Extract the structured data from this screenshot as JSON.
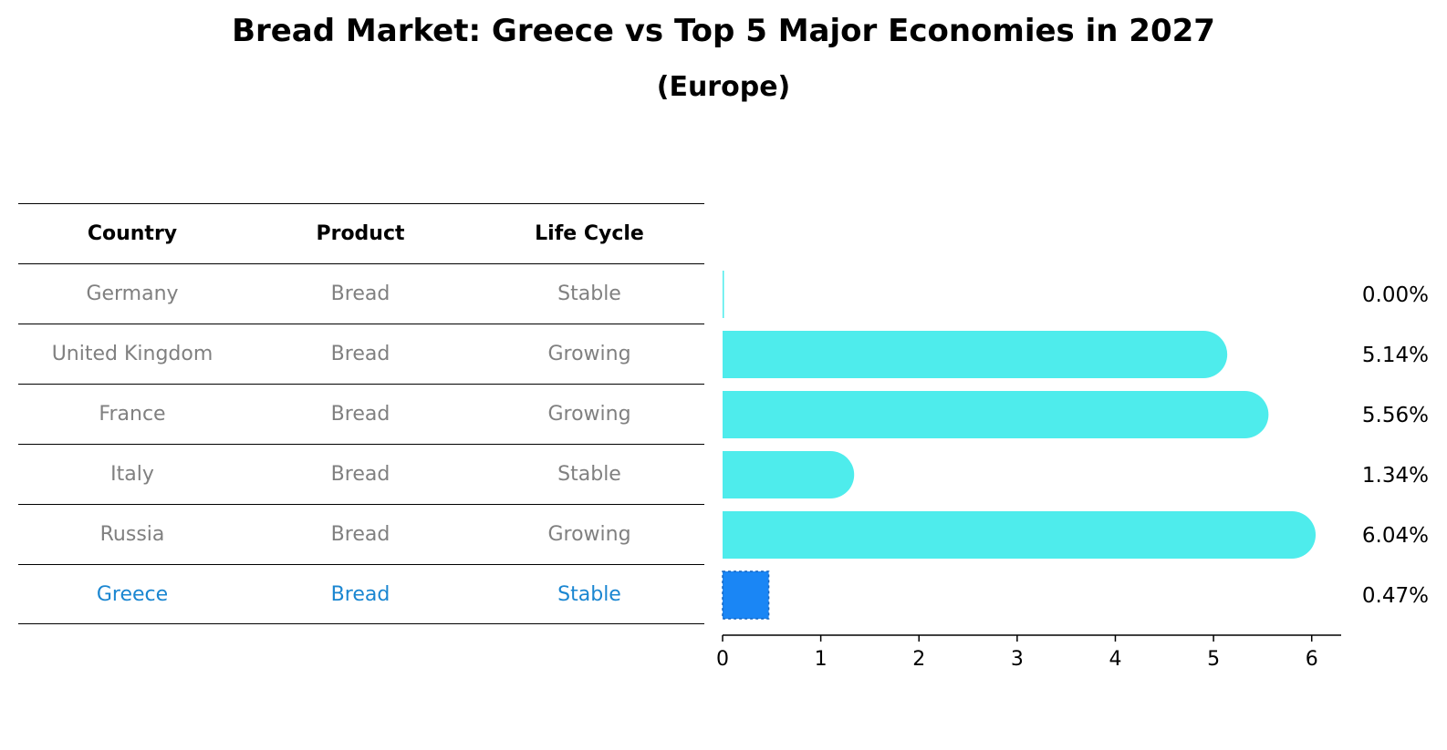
{
  "title": "Bread Market: Greece vs Top 5 Major Economies in 2027",
  "subtitle": "(Europe)",
  "table": {
    "headers": [
      "Country",
      "Product",
      "Life Cycle"
    ],
    "rows": [
      [
        "Germany",
        "Bread",
        "Stable"
      ],
      [
        "United Kingdom",
        "Bread",
        "Growing"
      ],
      [
        "France",
        "Bread",
        "Growing"
      ],
      [
        "Italy",
        "Bread",
        "Stable"
      ],
      [
        "Russia",
        "Bread",
        "Growing"
      ],
      [
        "Greece",
        "Bread",
        "Stable"
      ]
    ],
    "highlight_row": 5,
    "highlight_color": "#1a86d1",
    "text_color": "#808080"
  },
  "chart_data": {
    "type": "bar",
    "orientation": "horizontal",
    "categories": [
      "Germany",
      "United Kingdom",
      "France",
      "Italy",
      "Russia",
      "Greece"
    ],
    "values": [
      0.0,
      5.14,
      5.56,
      1.34,
      6.04,
      0.47
    ],
    "value_labels": [
      "0.00%",
      "5.14%",
      "5.56%",
      "1.34%",
      "6.04%",
      "0.47%"
    ],
    "xlim": [
      0,
      6.3
    ],
    "xticks": [
      0,
      1,
      2,
      3,
      4,
      5,
      6
    ],
    "bar_color": "#4eecec",
    "highlight_color": "#1a86f5",
    "highlight_index": 5,
    "grid": false
  }
}
